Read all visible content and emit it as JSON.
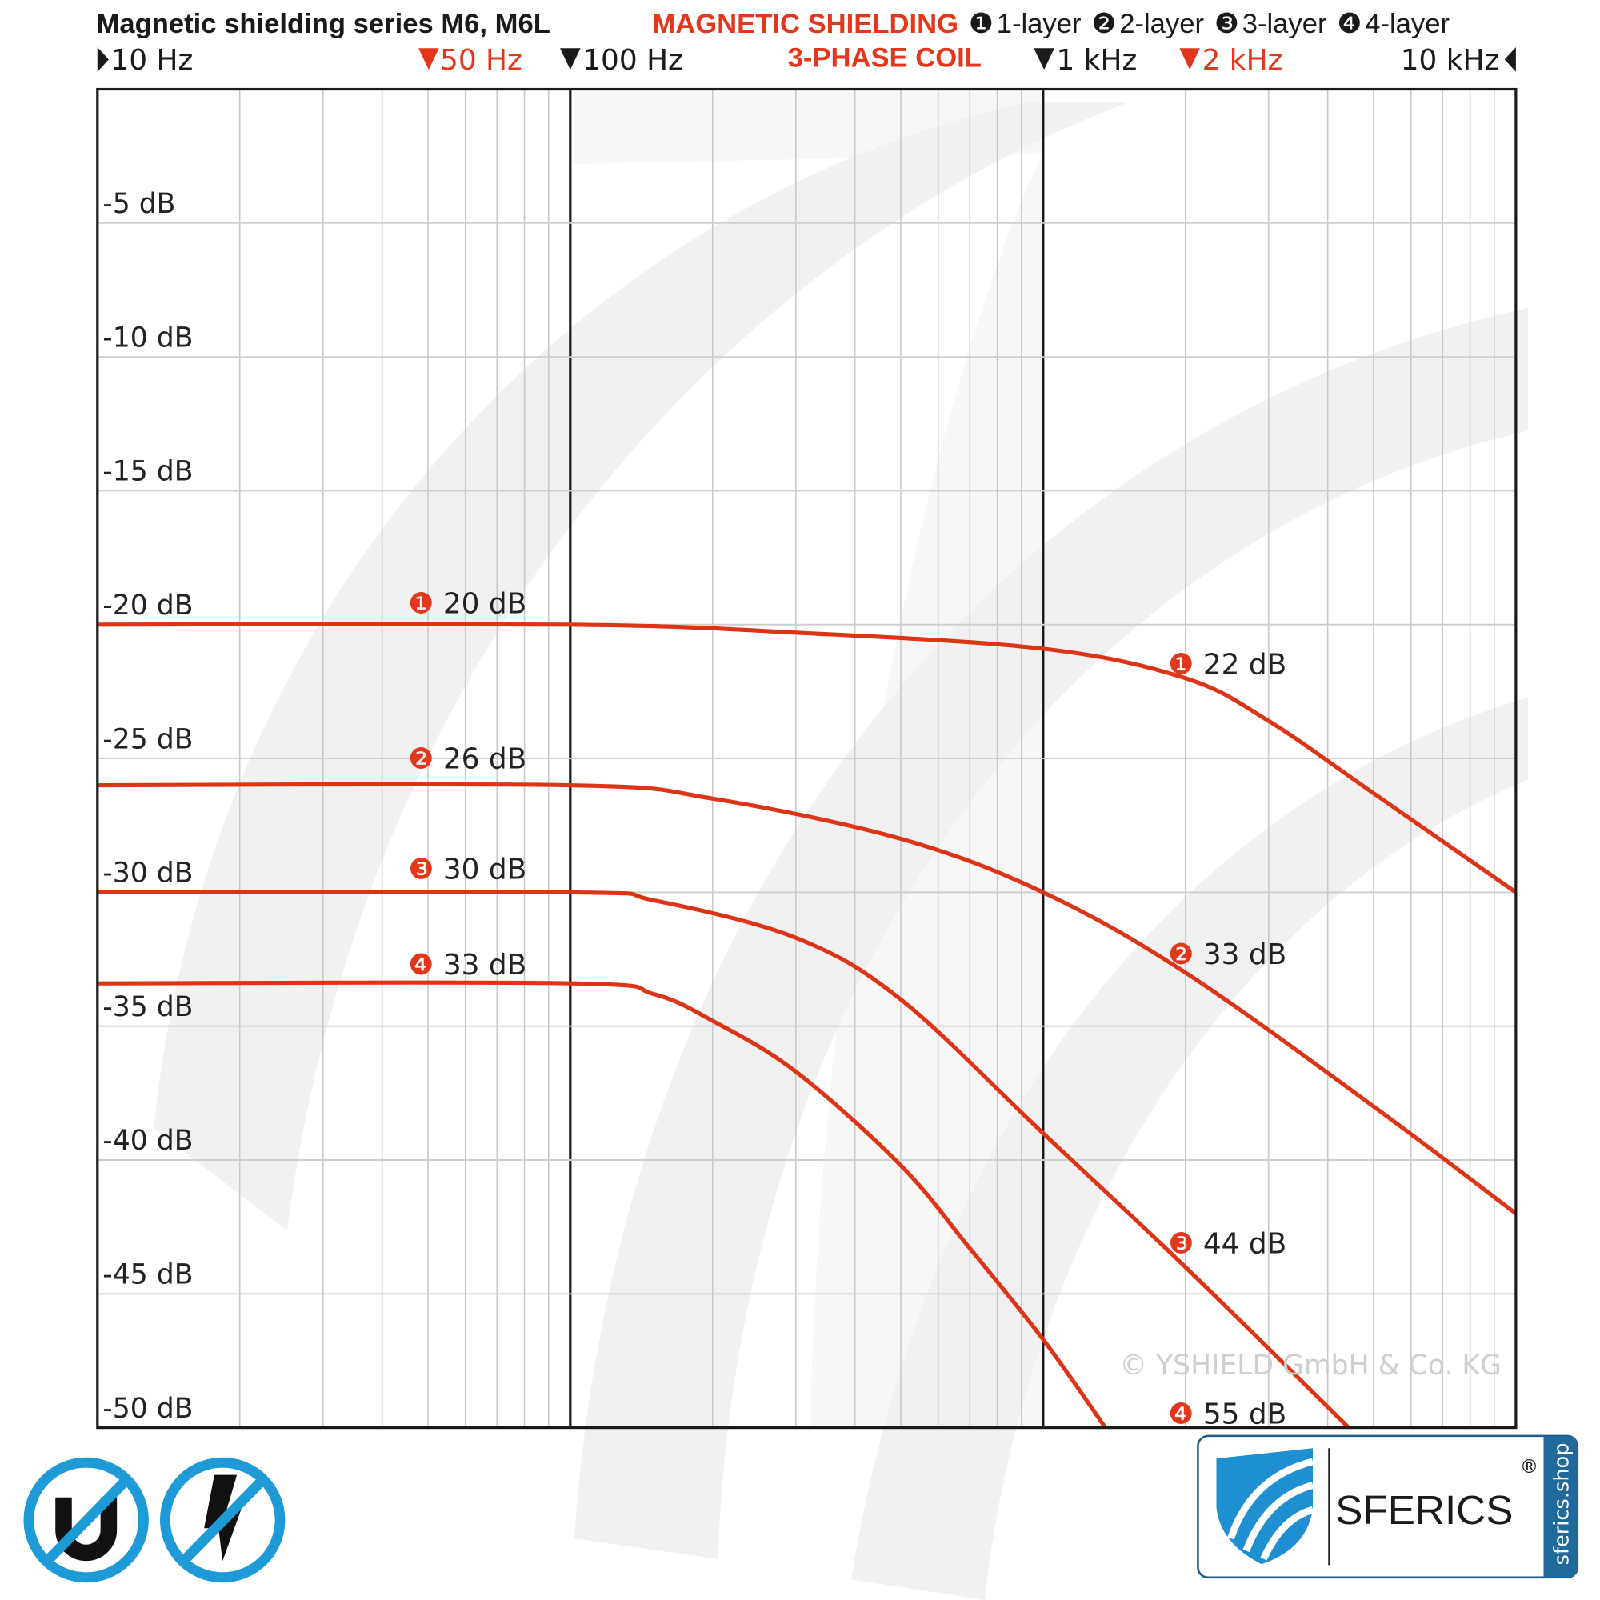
{
  "colors": {
    "curve": "#dd3418",
    "accent": "#e2371c",
    "logo_blue": "#1e8fd0",
    "logo_dark": "#1f5a86",
    "grid": "#c8c8c8",
    "axis": "#1a1a1a"
  },
  "header": {
    "title": "Magnetic shielding series M6, M6L",
    "red_title_1": "MAGNETIC SHIELDING",
    "red_title_2": "3-PHASE COIL",
    "legend": [
      {
        "marker": "❶",
        "label": "1-layer"
      },
      {
        "marker": "❷",
        "label": "2-layer"
      },
      {
        "marker": "❸",
        "label": "3-layer"
      },
      {
        "marker": "❹",
        "label": "4-layer"
      }
    ]
  },
  "freq_labels": {
    "f10": "10 Hz",
    "f50": "50 Hz",
    "f100": "100 Hz",
    "f1k": "1 kHz",
    "f2k": "2 kHz",
    "f10k": "10 kHz"
  },
  "chart_data": {
    "type": "line",
    "title": "Magnetic shielding series M6, M6L",
    "x_scale": "log",
    "xlim": [
      10,
      10000
    ],
    "ylim": [
      -50,
      0
    ],
    "grid": true,
    "y_ticks": [
      -5,
      -10,
      -15,
      -20,
      -25,
      -30,
      -35,
      -40,
      -45,
      -50
    ],
    "y_tick_labels": [
      "-5 dB",
      "-10 dB",
      "-15 dB",
      "-20 dB",
      "-25 dB",
      "-30 dB",
      "-35 dB",
      "-40 dB",
      "-45 dB",
      "-50 dB"
    ],
    "series": [
      {
        "name": "1-layer",
        "x": [
          10,
          100,
          300,
          1000,
          2000,
          3000,
          5000,
          10000
        ],
        "y": [
          -20,
          -20,
          -20.3,
          -20.9,
          -22,
          -23.6,
          -26.3,
          -30
        ]
      },
      {
        "name": "2-layer",
        "x": [
          10,
          100,
          200,
          500,
          1000,
          2000,
          5000,
          10000
        ],
        "y": [
          -26,
          -26,
          -26.5,
          -28,
          -30,
          -33,
          -38,
          -42
        ]
      },
      {
        "name": "3-layer",
        "x": [
          10,
          100,
          150,
          300,
          500,
          1000,
          2000,
          4430
        ],
        "y": [
          -30,
          -30,
          -30.3,
          -31.7,
          -34,
          -39,
          -44,
          -50
        ]
      },
      {
        "name": "4-layer",
        "x": [
          10,
          100,
          150,
          200,
          300,
          500,
          700,
          1000,
          1355
        ],
        "y": [
          -33.4,
          -33.4,
          -33.8,
          -34.8,
          -36.7,
          -40.2,
          -43.3,
          -46.7,
          -50
        ]
      }
    ],
    "annotations": [
      {
        "marker": "❶",
        "text": "20 dB"
      },
      {
        "marker": "❷",
        "text": "26 dB"
      },
      {
        "marker": "❸",
        "text": "30 dB"
      },
      {
        "marker": "❹",
        "text": "33 dB"
      },
      {
        "marker": "❶",
        "text": "22 dB"
      },
      {
        "marker": "❷",
        "text": "33 dB"
      },
      {
        "marker": "❸",
        "text": "44 dB"
      },
      {
        "marker": "❹",
        "text": "55 dB"
      }
    ]
  },
  "copyright": "© YSHIELD GmbH & Co. KG",
  "logo": {
    "brand": "SFERICS",
    "registered": "®",
    "site": "sferics.shop"
  },
  "icons": [
    "no-magnet-icon",
    "no-electric-icon"
  ]
}
